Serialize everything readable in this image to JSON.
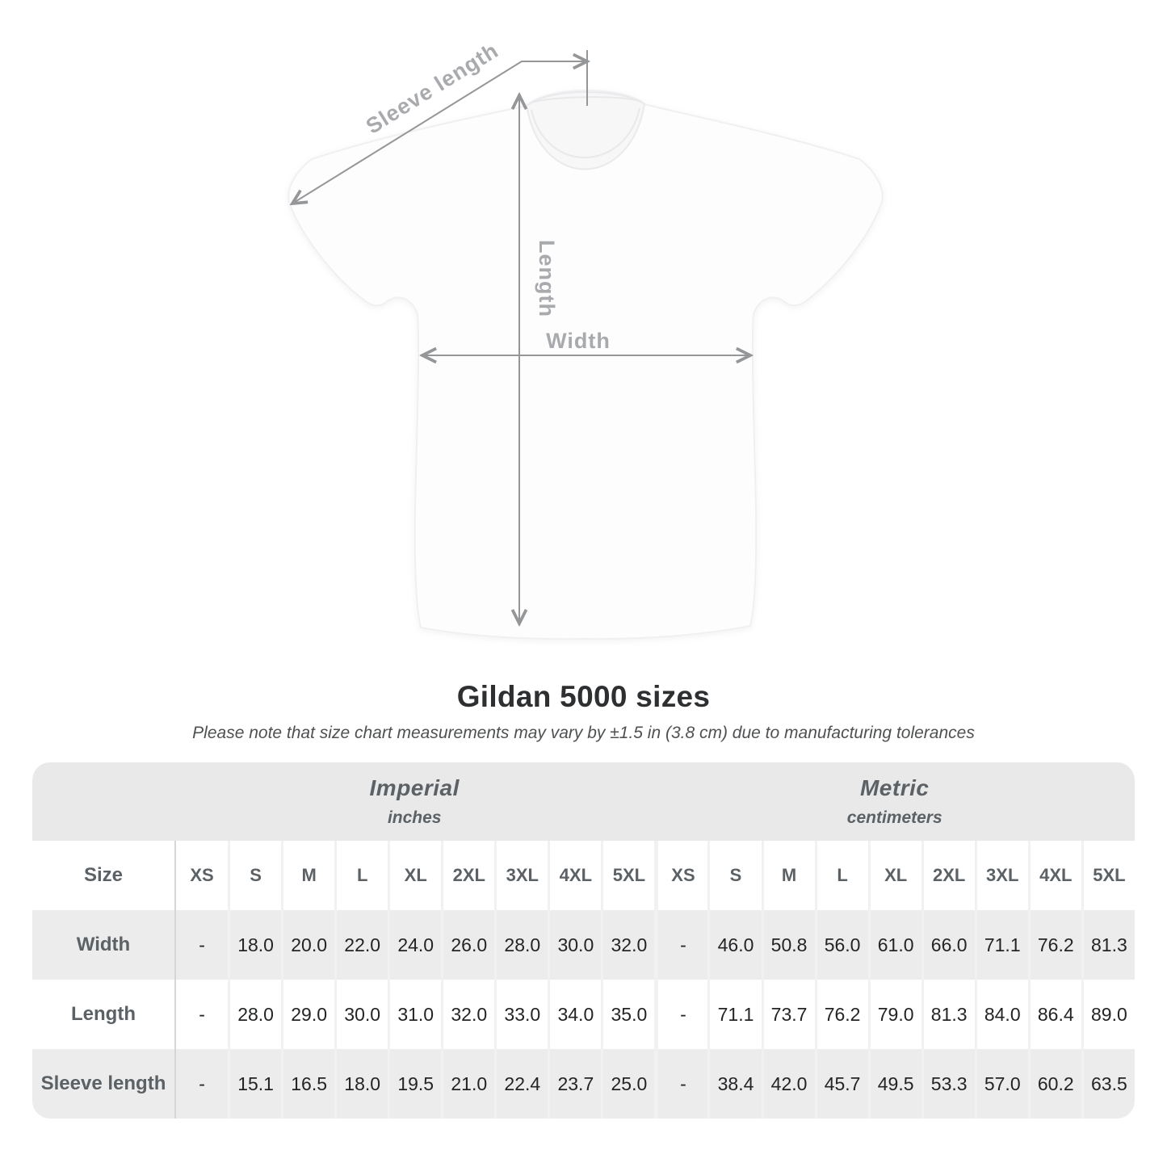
{
  "diagram": {
    "labels": {
      "sleeve_length": "Sleeve length",
      "length": "Length",
      "width": "Width"
    }
  },
  "title": "Gildan 5000 sizes",
  "subtitle": "Please note that size chart measurements may vary by ±1.5 in (3.8 cm) due to manufacturing tolerances",
  "table": {
    "size_col_header": "Size",
    "sections": [
      {
        "label": "Imperial",
        "sublabel": "inches"
      },
      {
        "label": "Metric",
        "sublabel": "centimeters"
      }
    ],
    "sizes": [
      "XS",
      "S",
      "M",
      "L",
      "XL",
      "2XL",
      "3XL",
      "4XL",
      "5XL"
    ],
    "rows": [
      {
        "label": "Width",
        "imperial": [
          "-",
          "18.0",
          "20.0",
          "22.0",
          "24.0",
          "26.0",
          "28.0",
          "30.0",
          "32.0"
        ],
        "metric": [
          "-",
          "46.0",
          "50.8",
          "56.0",
          "61.0",
          "66.0",
          "71.1",
          "76.2",
          "81.3"
        ]
      },
      {
        "label": "Length",
        "imperial": [
          "-",
          "28.0",
          "29.0",
          "30.0",
          "31.0",
          "32.0",
          "33.0",
          "34.0",
          "35.0"
        ],
        "metric": [
          "-",
          "71.1",
          "73.7",
          "76.2",
          "79.0",
          "81.3",
          "84.0",
          "86.4",
          "89.0"
        ]
      },
      {
        "label": "Sleeve length",
        "imperial": [
          "-",
          "15.1",
          "16.5",
          "18.0",
          "19.5",
          "21.0",
          "22.4",
          "23.7",
          "25.0"
        ],
        "metric": [
          "-",
          "38.4",
          "42.0",
          "45.7",
          "49.5",
          "53.3",
          "57.0",
          "60.2",
          "63.5"
        ]
      }
    ]
  }
}
